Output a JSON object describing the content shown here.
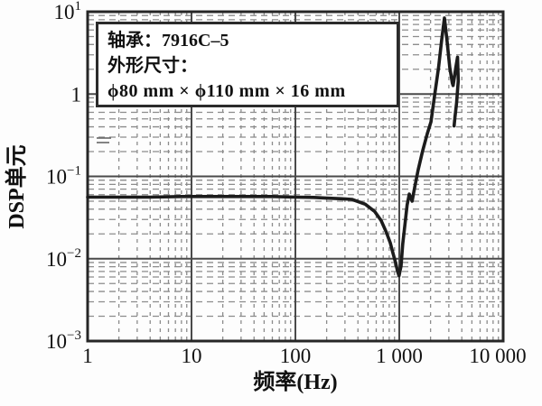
{
  "chart_data": {
    "type": "line",
    "title": "",
    "xlabel": "频率(Hz)",
    "ylabel": "DSP单元",
    "x_scale": "log",
    "y_scale": "log",
    "xlim": [
      1,
      10000
    ],
    "ylim": [
      0.001,
      10
    ],
    "x_ticks": [
      "1",
      "10",
      "100",
      "1 000",
      "10 000"
    ],
    "y_ticks": [
      "10^1",
      "1",
      "10^-1",
      "10^-2",
      "10^-3"
    ],
    "y_tick_exponents": [
      1,
      0,
      -1,
      -2,
      -3
    ],
    "grid": {
      "major": "solid",
      "minor": "log-dashed",
      "legend_position": "none"
    },
    "annotation_box": {
      "lines": [
        "轴承：7916C–5",
        "外形尺寸：",
        "ϕ80 mm × ϕ110 mm × 16 mm"
      ]
    },
    "series": [
      {
        "points": [
          [
            1,
            0.056
          ],
          [
            2,
            0.056
          ],
          [
            4,
            0.056
          ],
          [
            8,
            0.057
          ],
          [
            15,
            0.057
          ],
          [
            30,
            0.057
          ],
          [
            60,
            0.057
          ],
          [
            100,
            0.056
          ],
          [
            150,
            0.0555
          ],
          [
            200,
            0.0545
          ],
          [
            280,
            0.0535
          ],
          [
            350,
            0.0525
          ],
          [
            470,
            0.046
          ],
          [
            580,
            0.0375
          ],
          [
            670,
            0.029
          ],
          [
            750,
            0.021
          ],
          [
            820,
            0.0155
          ],
          [
            870,
            0.0117
          ],
          [
            925,
            0.0088
          ],
          [
            960,
            0.0071
          ],
          [
            995,
            0.0062
          ],
          [
            1040,
            0.0082
          ],
          [
            1080,
            0.015
          ],
          [
            1130,
            0.025
          ],
          [
            1190,
            0.045
          ],
          [
            1250,
            0.061
          ],
          [
            1330,
            0.05
          ],
          [
            1410,
            0.075
          ],
          [
            1520,
            0.12
          ],
          [
            1680,
            0.205
          ],
          [
            1860,
            0.33
          ],
          [
            2020,
            0.46
          ],
          [
            2190,
            0.98
          ],
          [
            2390,
            2.1
          ],
          [
            2560,
            4.5
          ],
          [
            2720,
            8.4
          ],
          [
            2880,
            4.5
          ],
          [
            3060,
            2.1
          ],
          [
            3240,
            1.37
          ],
          [
            3300,
            1.27
          ],
          [
            3500,
            2.1
          ],
          [
            3640,
            2.8
          ],
          [
            3700,
            1.45
          ],
          [
            3560,
            0.77
          ],
          [
            3430,
            0.52
          ],
          [
            3370,
            0.41
          ]
        ]
      }
    ]
  },
  "colors": {
    "curve": "#1c1c1c",
    "grid_major": "#4a4a4a",
    "grid_minor": "#8c8c8c",
    "border": "#262626",
    "text": "#111111"
  }
}
